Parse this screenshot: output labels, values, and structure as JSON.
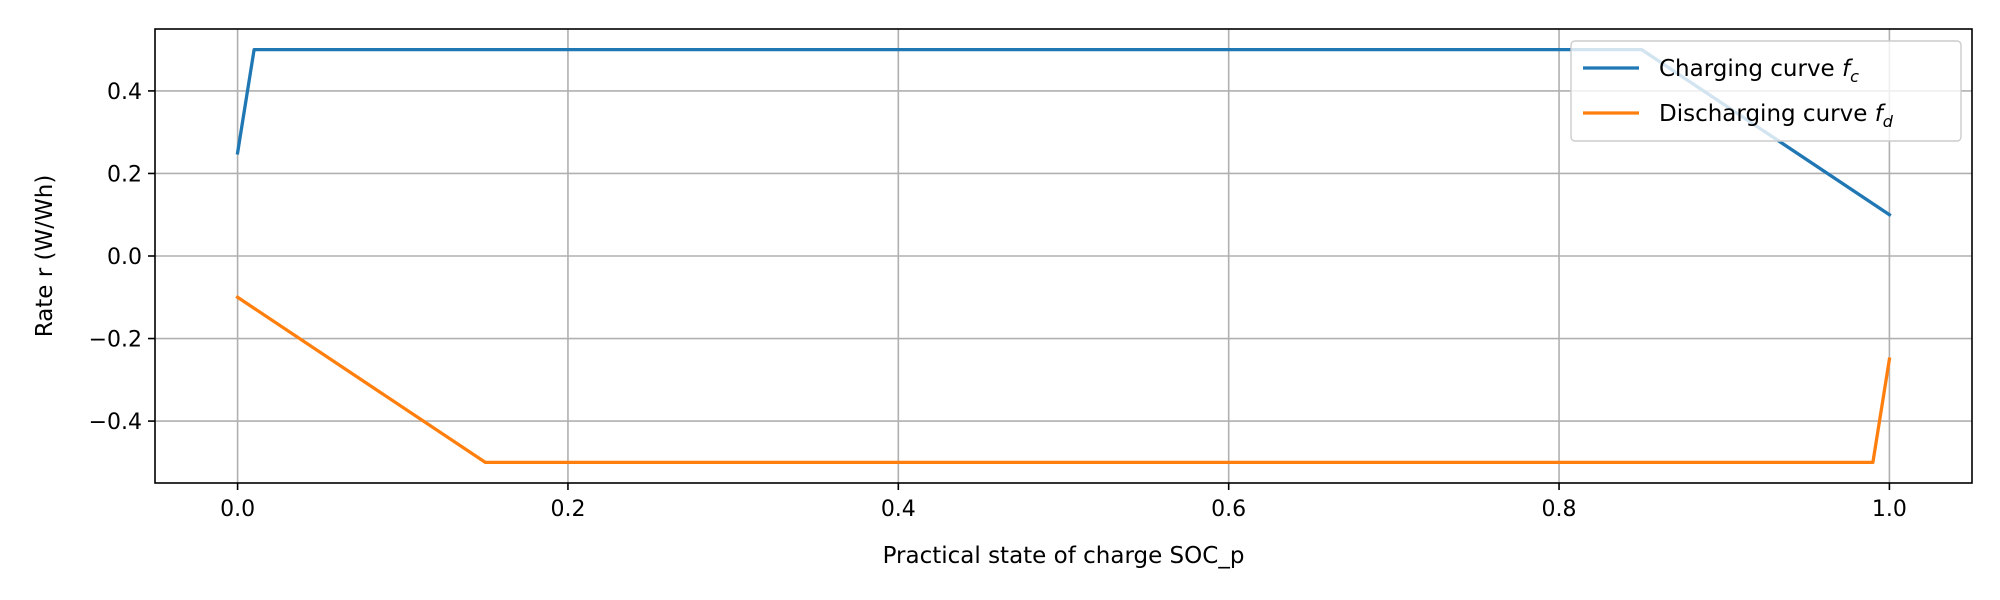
{
  "chart_data": {
    "type": "line",
    "xlabel": "Practical state of charge SOC_p",
    "ylabel": "Rate r (W/Wh)",
    "xlim": [
      -0.05,
      1.05
    ],
    "ylim": [
      -0.55,
      0.55
    ],
    "xticks": [
      0.0,
      0.2,
      0.4,
      0.6,
      0.8,
      1.0
    ],
    "xtick_labels": [
      "0.0",
      "0.2",
      "0.4",
      "0.6",
      "0.8",
      "1.0"
    ],
    "yticks": [
      0.4,
      0.2,
      0.0,
      -0.2,
      -0.4
    ],
    "ytick_labels": [
      "0.4",
      "0.2",
      "0.0",
      "−0.2",
      "−0.4"
    ],
    "grid": true,
    "legend_position": "upper right",
    "series": [
      {
        "name": "Charging curve f_c",
        "legend_main": "Charging curve ",
        "legend_symbol": "f",
        "legend_sub": "c",
        "color": "#1f77b4",
        "x": [
          0.0,
          0.01,
          0.85,
          1.0
        ],
        "y": [
          0.25,
          0.5,
          0.5,
          0.1
        ]
      },
      {
        "name": "Discharging curve f_d",
        "legend_main": "Discharging curve ",
        "legend_symbol": "f",
        "legend_sub": "d",
        "color": "#ff7f0e",
        "x": [
          0.0,
          0.15,
          0.99,
          1.0
        ],
        "y": [
          -0.1,
          -0.5,
          -0.5,
          -0.25
        ]
      }
    ]
  }
}
